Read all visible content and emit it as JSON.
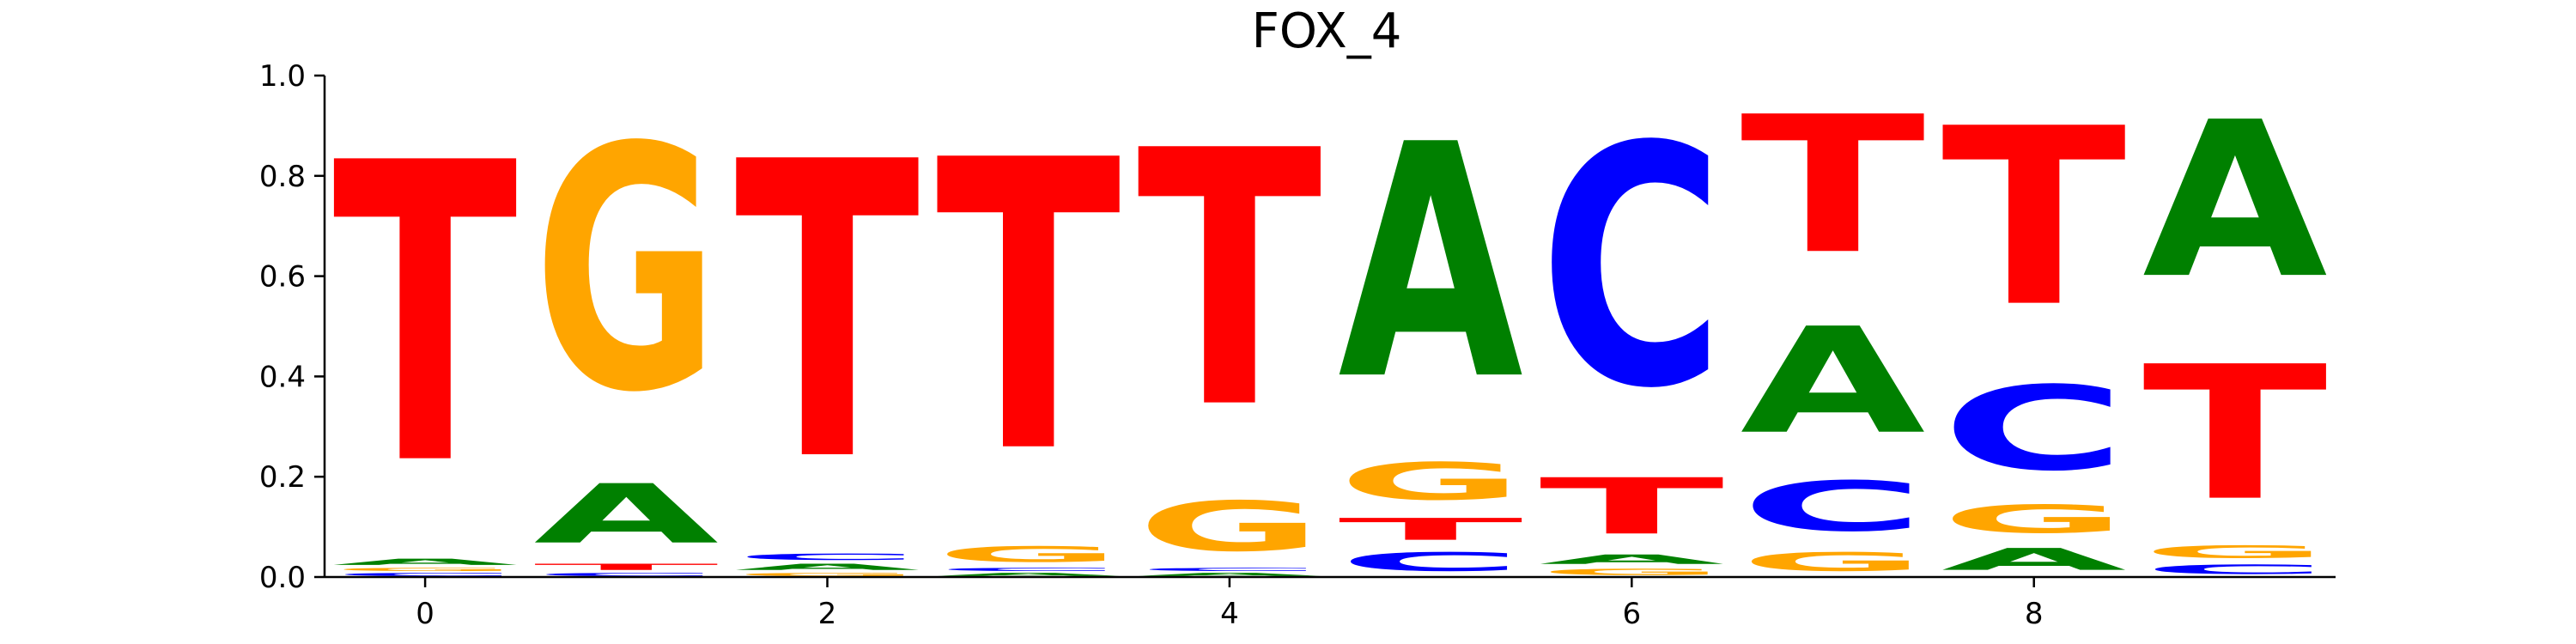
{
  "chart_data": {
    "type": "sequence-logo",
    "title": "FOX_4",
    "xlabel": "",
    "ylabel": "",
    "ylim": [
      0.0,
      1.0
    ],
    "xlim": [
      -0.5,
      9.5
    ],
    "x_ticks": [
      0,
      2,
      4,
      6,
      8
    ],
    "y_ticks": [
      "0.0",
      "0.2",
      "0.4",
      "0.6",
      "0.8",
      "1.0"
    ],
    "grid": false,
    "colors": {
      "A": "#008000",
      "C": "#0000ff",
      "G": "#ffa500",
      "T": "#ff0000"
    },
    "positions": [
      {
        "pos": 0,
        "A": 0.02,
        "C": 0.01,
        "G": 0.01,
        "T": 0.96
      },
      {
        "pos": 1,
        "A": 0.19,
        "C": 0.01,
        "G": 0.78,
        "T": 0.02
      },
      {
        "pos": 2,
        "A": 0.02,
        "C": 0.02,
        "G": 0.01,
        "T": 0.95
      },
      {
        "pos": 3,
        "A": 0.01,
        "C": 0.01,
        "G": 0.05,
        "T": 0.93
      },
      {
        "pos": 4,
        "A": 0.01,
        "C": 0.01,
        "G": 0.16,
        "T": 0.82
      },
      {
        "pos": 5,
        "A": 0.75,
        "C": 0.06,
        "G": 0.12,
        "T": 0.07
      },
      {
        "pos": 6,
        "A": 0.03,
        "C": 0.77,
        "G": 0.02,
        "T": 0.18
      },
      {
        "pos": 7,
        "A": 0.34,
        "C": 0.16,
        "G": 0.06,
        "T": 0.44
      },
      {
        "pos": 8,
        "A": 0.07,
        "C": 0.27,
        "G": 0.09,
        "T": 0.57
      },
      {
        "pos": 9,
        "A": 0.5,
        "C": 0.03,
        "G": 0.04,
        "T": 0.43
      }
    ]
  }
}
